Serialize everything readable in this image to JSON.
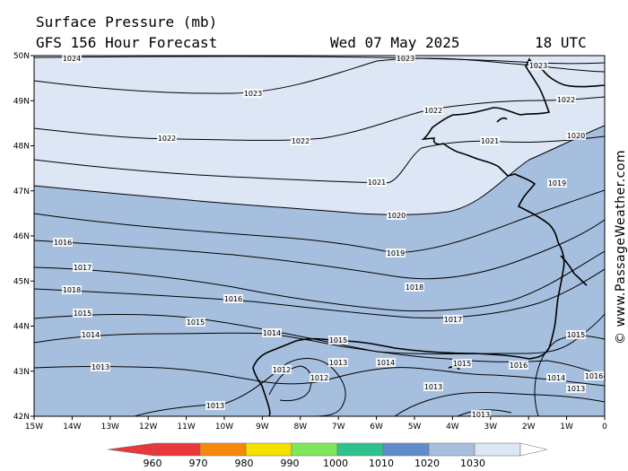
{
  "header": {
    "title": "Surface Pressure (mb)",
    "forecast": "GFS 156 Hour Forecast",
    "date": "Wed 07 May 2025",
    "time": "18 UTC"
  },
  "credit": "© www.PassageWeather.com",
  "map": {
    "lon_labels": [
      "15W",
      "14W",
      "13W",
      "12W",
      "11W",
      "10W",
      "9W",
      "8W",
      "7W",
      "6W",
      "5W",
      "4W",
      "3W",
      "2W",
      "1W",
      "0"
    ],
    "lat_labels": [
      "50N",
      "49N",
      "48N",
      "47N",
      "46N",
      "45N",
      "44N",
      "43N",
      "42N"
    ],
    "colors": {
      "band_1020_1030": "#dde6f4",
      "band_1010_1020": "#a7bfdf",
      "isobar": "#000000",
      "coast": "#000000"
    },
    "isobar_labels": [
      {
        "text": "1024"
      },
      {
        "text": "1023"
      },
      {
        "text": "1023"
      },
      {
        "text": "1023"
      },
      {
        "text": "1022"
      },
      {
        "text": "1022"
      },
      {
        "text": "1022"
      },
      {
        "text": "1022"
      },
      {
        "text": "1021"
      },
      {
        "text": "1021"
      },
      {
        "text": "1020"
      },
      {
        "text": "1020"
      },
      {
        "text": "1019"
      },
      {
        "text": "1019"
      },
      {
        "text": "1016"
      },
      {
        "text": "1017"
      },
      {
        "text": "1018"
      },
      {
        "text": "1016"
      },
      {
        "text": "1018"
      },
      {
        "text": "1015"
      },
      {
        "text": "1015"
      },
      {
        "text": "1017"
      },
      {
        "text": "1014"
      },
      {
        "text": "1014"
      },
      {
        "text": "1015"
      },
      {
        "text": "1013"
      },
      {
        "text": "1012"
      },
      {
        "text": "1013"
      },
      {
        "text": "1012"
      },
      {
        "text": "1014"
      },
      {
        "text": "1015"
      },
      {
        "text": "1016"
      },
      {
        "text": "1013"
      },
      {
        "text": "1013"
      },
      {
        "text": "1015"
      },
      {
        "text": "1014"
      },
      {
        "text": "1013"
      },
      {
        "text": "1016"
      },
      {
        "text": "1013"
      }
    ]
  },
  "legend": {
    "labels": [
      "960",
      "970",
      "980",
      "990",
      "1000",
      "1010",
      "1020",
      "1030"
    ],
    "colors": [
      "#e8383a",
      "#f58a0a",
      "#f7e000",
      "#7ee85a",
      "#2ec28c",
      "#5f8ccb",
      "#a7bfdf",
      "#dde6f4"
    ]
  }
}
